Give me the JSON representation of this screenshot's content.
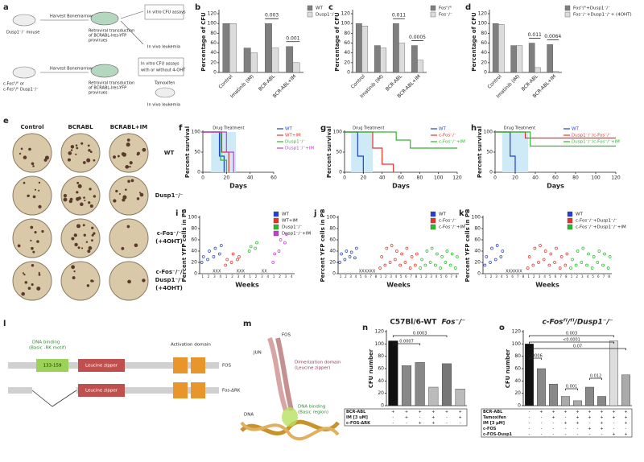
{
  "panels": {
    "a": {
      "letter": "a",
      "texts": [
        "Dusp1⁻/⁻ mouse",
        "Harvest Bonemarrow",
        "Retroviral transduction",
        "of BCRABL-Ires-YFP",
        "provirues",
        "In vitro CFU assays",
        "In vivo leukemia",
        "c-Fosᶠˡ/ᶠˡ or",
        "c-Fosᶠˡ/ᶠˡ Dusp1⁻/⁻",
        "Harvest Bonemarrow",
        "Retroviral transduction",
        "of BCRABL-Ires-YFP",
        "provirues",
        "In vitro CFU assays",
        "with or without 4-OHT",
        "Tamoxifen",
        "In vivo leukemia"
      ]
    },
    "e": {
      "letter": "e",
      "columns": [
        "Control",
        "BCRABL",
        "BCRABL+IM"
      ],
      "rows": [
        [
          "WT"
        ],
        [
          "Dusp1⁻/⁻"
        ],
        [
          "c-Fos⁻/⁻",
          "(+4OHT)"
        ],
        [
          "c-Fos⁻/⁻/",
          "Dusp1⁻/⁻",
          "(+4OHT)"
        ]
      ]
    },
    "l": {
      "letter": "l",
      "texts": [
        "DNA binding",
        "(Basic -RK motif)",
        "133-159",
        "Leucine zipper",
        "Activation domain",
        "FOS",
        "Leucine zipper",
        "Fos-ΔRK"
      ]
    },
    "m": {
      "letter": "m",
      "texts": [
        "FOS",
        "JUN",
        "Dimerization domain",
        "(Leucine zipper)",
        "DNA binding",
        "(Basic region)",
        "DNA"
      ]
    }
  },
  "chart_data": [
    {
      "type": "bar",
      "panel": "b",
      "ylabel": "Percentage of CFU",
      "categories": [
        "Control",
        "Imatinib (IM)",
        "BCR-ABL",
        "BCR-ABL+IM"
      ],
      "series": [
        {
          "name": "WT",
          "color": "#7f7f7f",
          "values": [
            100,
            50,
            100,
            53
          ]
        },
        {
          "name": "Dusp1⁻/⁻",
          "color": "#dcdcdc",
          "values": [
            100,
            40,
            50,
            20
          ]
        }
      ],
      "ylim": [
        0,
        125
      ],
      "yticks": [
        0,
        20,
        40,
        60,
        80,
        100,
        120
      ],
      "annotations": [
        "0.003",
        "0.001"
      ]
    },
    {
      "type": "bar",
      "panel": "c",
      "ylabel": "Percentage of CFU",
      "categories": [
        "Control",
        "Imatinib (IM)",
        "BCR-ABL",
        "BCR-ABL+IM"
      ],
      "series": [
        {
          "name": "Fosᶠˡ/ᶠˡ",
          "color": "#7f7f7f",
          "values": [
            100,
            55,
            100,
            55
          ]
        },
        {
          "name": "Fos⁻/⁻",
          "color": "#dcdcdc",
          "values": [
            95,
            50,
            60,
            25
          ]
        }
      ],
      "ylim": [
        0,
        125
      ],
      "yticks": [
        0,
        20,
        40,
        60,
        80,
        100,
        120
      ],
      "annotations": [
        "0.011",
        "0.0005"
      ]
    },
    {
      "type": "bar",
      "panel": "d",
      "ylabel": "Percentage of CFU",
      "categories": [
        "Control",
        "Imatinib (IM)",
        "BCR-ABL",
        "BCR-ABL+IM"
      ],
      "series": [
        {
          "name": "Fosᶠˡ/ᶠˡ+Dusp1⁻/⁻",
          "color": "#7f7f7f",
          "values": [
            100,
            55,
            60,
            57
          ]
        },
        {
          "name": "Fos⁻/⁻+Dusp1⁻/⁻+ (4OHT)",
          "color": "#dcdcdc",
          "values": [
            98,
            55,
            10,
            2
          ]
        }
      ],
      "ylim": [
        0,
        125
      ],
      "yticks": [
        0,
        20,
        40,
        60,
        80,
        100,
        120
      ],
      "annotations": [
        "0.011",
        "0.0064"
      ]
    },
    {
      "type": "line",
      "panel": "f",
      "ylabel": "Percent survival",
      "xlabel": "Days",
      "annotation": "Drug Treatment",
      "treatment_days": [
        7,
        28
      ],
      "xlim": [
        0,
        60
      ],
      "xticks": [
        0,
        20,
        40,
        60
      ],
      "ylim": [
        0,
        100
      ],
      "yticks": [
        0,
        50,
        100
      ],
      "series": [
        {
          "name": "WT",
          "color": "#1f3fd6",
          "x": [
            0,
            10,
            14,
            18
          ],
          "values": [
            100,
            100,
            40,
            0
          ]
        },
        {
          "name": "WT+IM",
          "color": "#e8312a",
          "x": [
            0,
            12,
            16,
            22
          ],
          "values": [
            100,
            100,
            50,
            0
          ]
        },
        {
          "name": "Dusp1⁻/⁻",
          "color": "#2db82d",
          "x": [
            0,
            11,
            15,
            20
          ],
          "values": [
            100,
            100,
            30,
            0
          ]
        },
        {
          "name": "Dusp1⁻/⁻+IM",
          "color": "#c03fd0",
          "x": [
            0,
            14,
            20,
            26
          ],
          "values": [
            100,
            100,
            50,
            0
          ]
        }
      ]
    },
    {
      "type": "line",
      "panel": "g",
      "ylabel": "Percent survival",
      "xlabel": "Days",
      "annotation": "Drug Treatment",
      "treatment_days": [
        7,
        30
      ],
      "xlim": [
        0,
        120
      ],
      "xticks": [
        0,
        20,
        40,
        60,
        80,
        100,
        120
      ],
      "ylim": [
        0,
        100
      ],
      "yticks": [
        0,
        50,
        100
      ],
      "series": [
        {
          "name": "WT",
          "color": "#1f3fd6",
          "x": [
            0,
            10,
            14,
            20
          ],
          "values": [
            100,
            100,
            40,
            0
          ]
        },
        {
          "name": "c-Fos⁻/⁻",
          "color": "#e8312a",
          "x": [
            0,
            20,
            30,
            40,
            52
          ],
          "values": [
            100,
            100,
            60,
            20,
            0
          ]
        },
        {
          "name": "c-Fos⁻/⁻+IM",
          "color": "#2db82d",
          "x": [
            0,
            40,
            55,
            70,
            120
          ],
          "values": [
            100,
            100,
            80,
            60,
            60
          ]
        }
      ]
    },
    {
      "type": "line",
      "panel": "h",
      "ylabel": "Percent survival",
      "xlabel": "Days",
      "annotation": "Drug Treatment",
      "treatment_days": [
        7,
        33
      ],
      "xlim": [
        0,
        120
      ],
      "xticks": [
        0,
        20,
        40,
        60,
        80,
        100,
        120
      ],
      "ylim": [
        0,
        100
      ],
      "yticks": [
        0,
        50,
        100
      ],
      "series": [
        {
          "name": "WT",
          "color": "#1f3fd6",
          "x": [
            0,
            10,
            15,
            20
          ],
          "values": [
            100,
            100,
            40,
            0
          ]
        },
        {
          "name": "Dusp1⁻/⁻/c-Fos⁻/⁻",
          "color": "#e8312a",
          "x": [
            0,
            30,
            120
          ],
          "values": [
            100,
            85,
            85
          ]
        },
        {
          "name": "Dusp1⁻/⁻/c-Fos⁻/⁻+IM",
          "color": "#2db82d",
          "x": [
            0,
            35,
            120
          ],
          "values": [
            100,
            65,
            65
          ]
        }
      ]
    },
    {
      "type": "scatter",
      "panel": "i",
      "ylabel": "Percent YFP cells in PB",
      "xlabel": "Weeks",
      "xticks": [
        1,
        2,
        3,
        4
      ],
      "ylim": [
        0,
        100
      ],
      "yticks": [
        0,
        20,
        40,
        60,
        80,
        100
      ],
      "annotations": [
        "XXX",
        "XXX",
        "XX"
      ],
      "series": [
        {
          "name": "WT",
          "color": "#1f3fd6",
          "x": [
            1,
            1,
            2,
            2,
            3,
            3,
            4,
            4
          ],
          "values": [
            20,
            30,
            25,
            40,
            30,
            45,
            35,
            50
          ]
        },
        {
          "name": "WT+IM",
          "color": "#e8312a",
          "x": [
            1,
            1,
            2,
            2,
            3,
            3
          ],
          "values": [
            15,
            25,
            20,
            35,
            25,
            30
          ]
        },
        {
          "name": "Dusp1⁻/⁻",
          "color": "#2db82d",
          "x": [
            1,
            1,
            2,
            2
          ],
          "values": [
            40,
            48,
            45,
            55
          ]
        },
        {
          "name": "Dusp1⁻/⁻+IM",
          "color": "#c03fd0",
          "x": [
            1,
            1,
            2,
            2,
            3,
            3
          ],
          "values": [
            20,
            35,
            40,
            60,
            55,
            70
          ]
        }
      ]
    },
    {
      "type": "scatter",
      "panel": "j",
      "ylabel": "Percent YFP cells in PB",
      "xlabel": "Weeks",
      "xticks": [
        1,
        2,
        3,
        4,
        5,
        6,
        7,
        8
      ],
      "ylim": [
        0,
        100
      ],
      "yticks": [
        0,
        20,
        40,
        60,
        80,
        100
      ],
      "annotations": [
        "XXXXXX"
      ],
      "series": [
        {
          "name": "WT",
          "color": "#1f3fd6",
          "x": [
            1,
            1,
            2,
            2,
            3,
            3,
            4,
            4
          ],
          "values": [
            20,
            35,
            25,
            40,
            30,
            38,
            28,
            45
          ]
        },
        {
          "name": "c-Fos⁻/⁻",
          "color": "#e8312a",
          "x": [
            1,
            1,
            2,
            2,
            3,
            3,
            4,
            4,
            5,
            5,
            6,
            6,
            7,
            7,
            8,
            8
          ],
          "values": [
            10,
            30,
            15,
            45,
            20,
            50,
            25,
            40,
            15,
            35,
            20,
            45,
            10,
            30,
            15,
            35
          ]
        },
        {
          "name": "c-Fos⁻/⁻+IM",
          "color": "#2db82d",
          "x": [
            1,
            1,
            2,
            2,
            3,
            3,
            4,
            4,
            5,
            5,
            6,
            6,
            7,
            7,
            8,
            8
          ],
          "values": [
            10,
            25,
            15,
            40,
            20,
            45,
            15,
            35,
            10,
            30,
            20,
            40,
            15,
            35,
            10,
            30
          ]
        }
      ]
    },
    {
      "type": "scatter",
      "panel": "k",
      "ylabel": "Percent YFP cells in PB",
      "xlabel": "Weeks",
      "xticks": [
        1,
        2,
        3,
        4,
        5,
        6,
        7,
        8
      ],
      "ylim": [
        0,
        100
      ],
      "yticks": [
        0,
        20,
        40,
        60,
        80,
        100
      ],
      "annotations": [
        "XXXXXX"
      ],
      "series": [
        {
          "name": "WT",
          "color": "#1f3fd6",
          "x": [
            1,
            1,
            2,
            2,
            3,
            3,
            4,
            4
          ],
          "values": [
            15,
            30,
            20,
            45,
            25,
            50,
            30,
            40
          ]
        },
        {
          "name": "c-Fos⁻/⁻+Dusp1⁻/⁻",
          "color": "#e8312a",
          "x": [
            1,
            1,
            2,
            2,
            3,
            3,
            4,
            4,
            5,
            5,
            6,
            6,
            7,
            7,
            8,
            8
          ],
          "values": [
            10,
            30,
            15,
            45,
            20,
            50,
            25,
            40,
            15,
            35,
            20,
            45,
            10,
            30,
            15,
            35
          ]
        },
        {
          "name": "c-Fos⁻/⁻+Dusp1⁻/⁻+IM",
          "color": "#2db82d",
          "x": [
            1,
            1,
            2,
            2,
            3,
            3,
            4,
            4,
            5,
            5,
            6,
            6,
            7,
            7,
            8,
            8
          ],
          "values": [
            10,
            25,
            15,
            40,
            20,
            45,
            15,
            35,
            10,
            30,
            20,
            40,
            15,
            35,
            10,
            30
          ]
        }
      ]
    },
    {
      "type": "bar",
      "panel": "n",
      "title": "C57Bl/6-WT",
      "subtitle": "Fos⁻/⁻",
      "ylabel": "CFU number",
      "values": [
        105,
        65,
        70,
        30,
        68,
        27
      ],
      "colors": [
        "#111111",
        "#888888",
        "#888888",
        "#bbbbbb",
        "#777777",
        "#bbbbbb"
      ],
      "ylim": [
        0,
        120
      ],
      "yticks": [
        0,
        20,
        40,
        60,
        80,
        100,
        120
      ],
      "annotations": [
        "0.0003",
        "0.0007"
      ],
      "table": [
        {
          "label": "BCR-ABL",
          "cells": [
            "+",
            "+",
            "+",
            "+",
            "+",
            "+"
          ]
        },
        {
          "label": "IM [3 uM]",
          "cells": [
            "-",
            "+",
            "-",
            "+",
            "-",
            "+"
          ]
        },
        {
          "label": "c-FOS-ΔRK",
          "cells": [
            "-",
            "-",
            "+",
            "+",
            "-",
            "-"
          ]
        }
      ]
    },
    {
      "type": "bar",
      "panel": "o",
      "title": "c-Fosᶠˡ/ᶠˡ/Dusp1⁻/⁻",
      "ylabel": "CFU number",
      "values": [
        100,
        60,
        35,
        15,
        8,
        30,
        15,
        105,
        50
      ],
      "colors": [
        "#111111",
        "#888888",
        "#888888",
        "#aaaaaa",
        "#aaaaaa",
        "#888888",
        "#888888",
        "#dddddd",
        "#aaaaaa"
      ],
      "ylim": [
        0,
        120
      ],
      "yticks": [
        0,
        20,
        40,
        60,
        80,
        100,
        120
      ],
      "annotations": [
        "0.0006",
        "0.001",
        "0.012",
        "0.003",
        "<0.0001",
        "0.07"
      ],
      "table": [
        {
          "label": "BCR-ABL",
          "cells": [
            "-",
            "+",
            "+",
            "+",
            "+",
            "+",
            "+",
            "+",
            "+"
          ]
        },
        {
          "label": "Tamoxifen",
          "cells": [
            "-",
            "-",
            "+",
            "-",
            "+",
            "+",
            "+",
            "+",
            "+"
          ]
        },
        {
          "label": "IM [3 μM]",
          "cells": [
            "-",
            "-",
            "-",
            "+",
            "+",
            "-",
            "+",
            "-",
            "+"
          ]
        },
        {
          "label": "c-FOS",
          "cells": [
            "-",
            "-",
            "-",
            "-",
            "-",
            "+",
            "+",
            "-",
            "-"
          ]
        },
        {
          "label": "c-FOS-Dusp1",
          "cells": [
            "-",
            "-",
            "-",
            "-",
            "-",
            "-",
            "-",
            "+",
            "+"
          ]
        }
      ]
    }
  ]
}
